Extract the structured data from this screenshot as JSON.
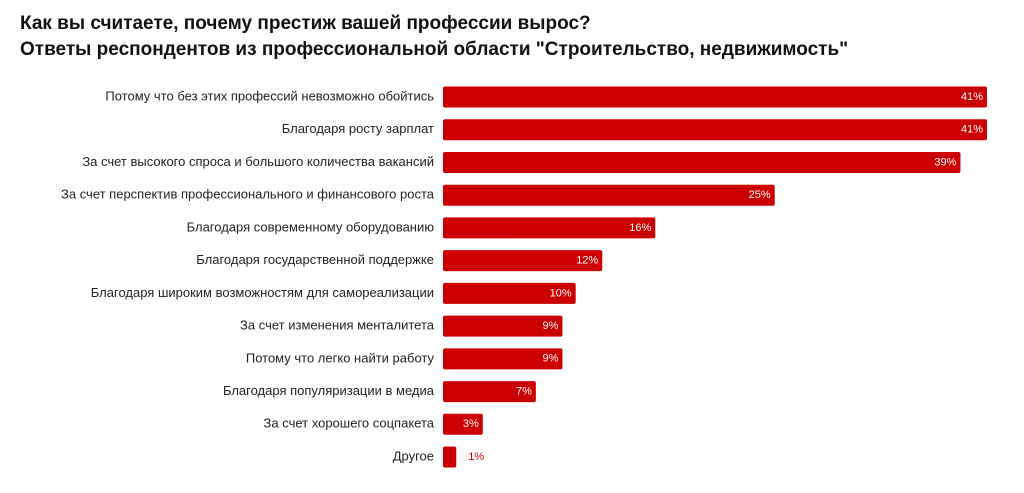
{
  "header": {
    "title": "Как вы считаете, почему престиж вашей профессии вырос?",
    "subtitle": "Ответы респондентов из профессиональной области \"Строительство, недвижимость\""
  },
  "colors": {
    "bar": "#cc0000",
    "value_inside": "#ffffff",
    "value_outside": "#cc0000"
  },
  "chart_data": {
    "type": "bar",
    "orientation": "horizontal",
    "title": "Как вы считаете, почему престиж вашей профессии вырос?",
    "subtitle": "Ответы респондентов из профессиональной области \"Строительство, недвижимость\"",
    "categories": [
      "Потому что без этих профессий невозможно обойтись",
      "Благодаря росту зарплат",
      "За счет высокого спроса и большого количества вакансий",
      "За счет перспектив профессионального и финансового роста",
      "Благодаря современному оборудованию",
      "Благодаря государственной поддержке",
      "Благодаря широким возможностям для самореализации",
      "За счет изменения менталитета",
      "Потому что легко найти работу",
      "Благодаря популяризации в медиа",
      "За счет хорошего соцпакета",
      "Другое"
    ],
    "values": [
      41,
      41,
      39,
      25,
      16,
      12,
      10,
      9,
      9,
      7,
      3,
      1
    ],
    "value_labels": [
      "41%",
      "41%",
      "39%",
      "25%",
      "16%",
      "12%",
      "10%",
      "9%",
      "9%",
      "7%",
      "3%",
      "1%"
    ],
    "xlim": [
      0,
      41
    ],
    "grid": false,
    "legend": "none"
  }
}
